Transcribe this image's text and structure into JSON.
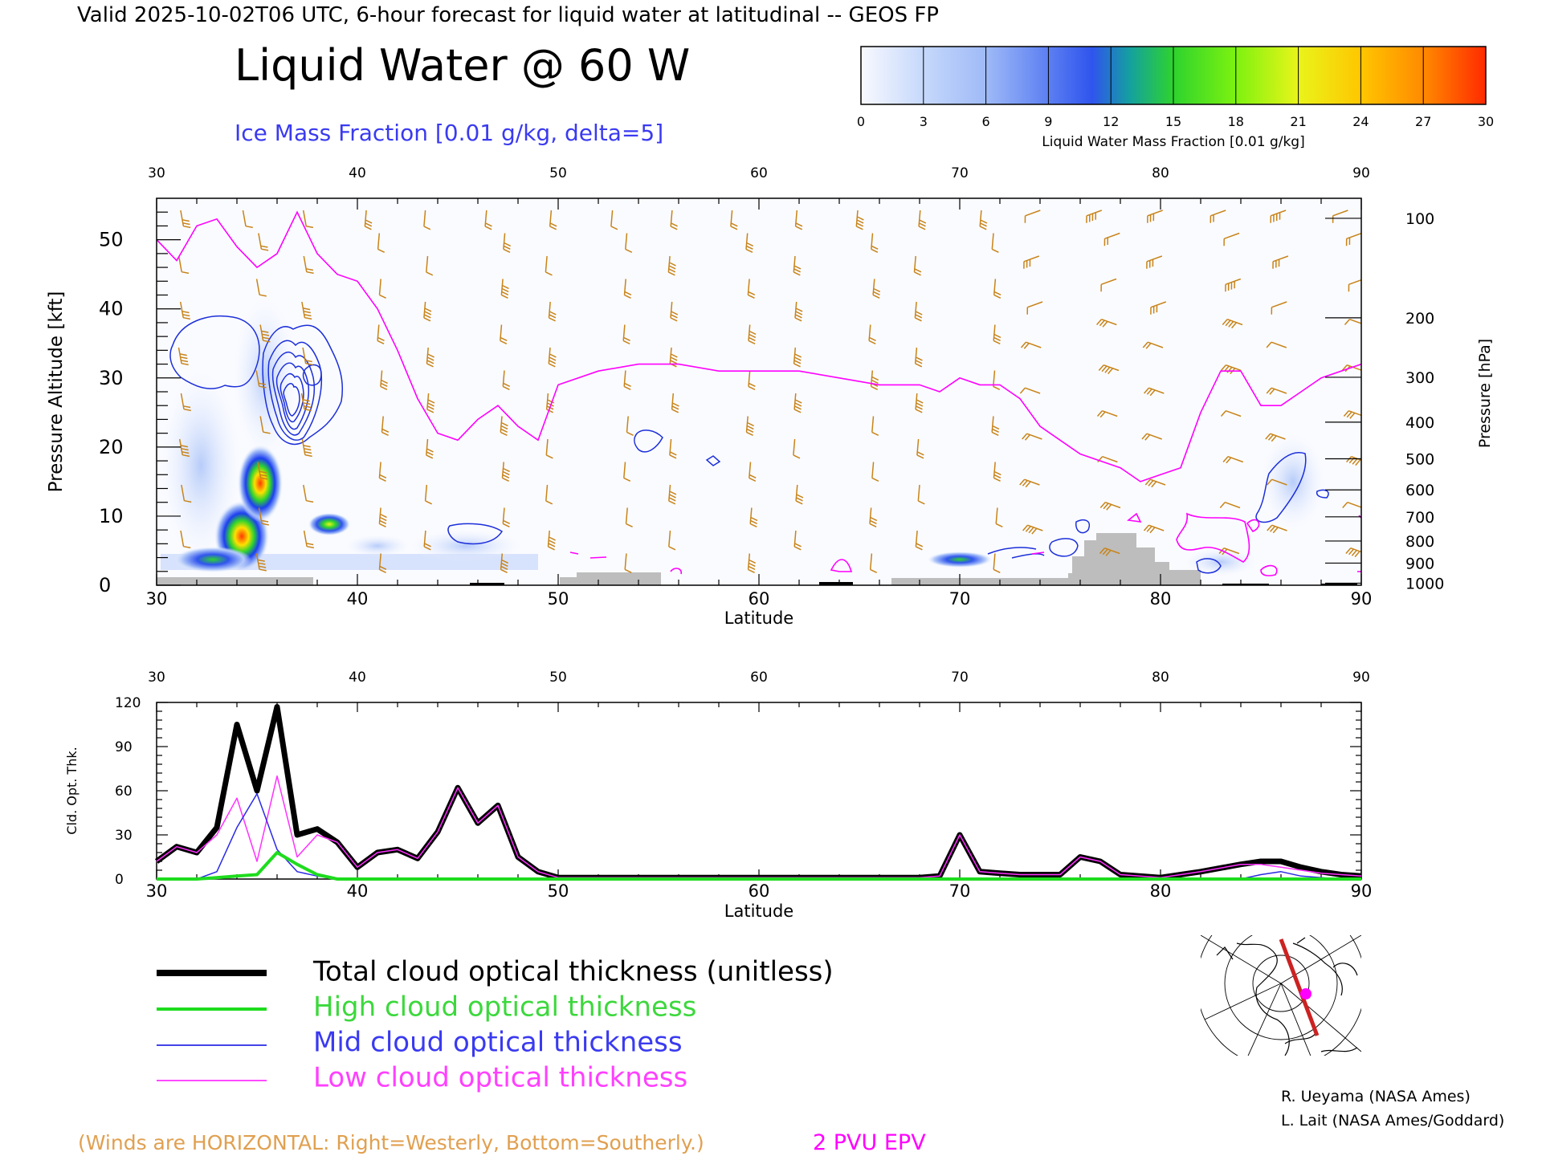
{
  "header": {
    "valid_line": "Valid 2025-10-02T06 UTC, 6-hour forecast for liquid water at latitudinal -- GEOS FP",
    "main_title": "Liquid Water @ 60 W",
    "subtitle": "Ice Mass Fraction [0.01 g/kg, delta=5]"
  },
  "colorbar": {
    "label": "Liquid Water Mass Fraction [0.01 g/kg]",
    "ticks": [
      "0",
      "3",
      "6",
      "9",
      "12",
      "15",
      "18",
      "21",
      "24",
      "27",
      "30"
    ],
    "colors": [
      "#f6f7ff",
      "#c6d8fb",
      "#9fbaf7",
      "#7a9af2",
      "#2f54ee",
      "#14a0a0",
      "#2ed32e",
      "#7df20f",
      "#e9f41a",
      "#ffc600",
      "#ff8a00",
      "#ff2a00"
    ]
  },
  "colors": {
    "wind_barbs": "#c88419",
    "epv": "#ff00ff",
    "ice_contours": "#1c2fd9",
    "terrain": "#bdbdbd",
    "total": "#000000",
    "high": "#1edc1e",
    "mid": "#2a2ae6",
    "low": "#ff30ff"
  },
  "chart_data": [
    {
      "type": "heatmap",
      "title": "Liquid Water @ 60 W",
      "xlabel": "Latitude",
      "ylabel": "Pressure Altitude [kft]",
      "y2label": "Pressure [hPa]",
      "xlim": [
        30,
        90
      ],
      "ylim": [
        0,
        56
      ],
      "x_ticks": [
        "30",
        "40",
        "50",
        "60",
        "70",
        "80",
        "90"
      ],
      "y_ticks": [
        "0",
        "10",
        "20",
        "30",
        "40",
        "50"
      ],
      "pressure_levels": [
        {
          "label": "100",
          "kft": 53.1
        },
        {
          "label": "200",
          "kft": 38.7
        },
        {
          "label": "300",
          "kft": 30.1
        },
        {
          "label": "400",
          "kft": 23.6
        },
        {
          "label": "500",
          "kft": 18.3
        },
        {
          "label": "600",
          "kft": 13.8
        },
        {
          "label": "700",
          "kft": 9.9
        },
        {
          "label": "800",
          "kft": 6.4
        },
        {
          "label": "900",
          "kft": 3.2
        },
        {
          "label": "1000",
          "kft": 0.3
        }
      ],
      "liquid_water_cells": [
        {
          "lat": 34.2,
          "kft": 8.0,
          "value": 24
        },
        {
          "lat": 35.2,
          "kft": 14.5,
          "value": 28
        },
        {
          "lat": 33.0,
          "kft": 4.0,
          "value": 18
        },
        {
          "lat": 38.6,
          "kft": 9.0,
          "value": 22
        },
        {
          "lat": 70.0,
          "kft": 4.0,
          "value": 16
        },
        {
          "lat": 45.5,
          "kft": 6.0,
          "value": 6
        },
        {
          "lat": 86.0,
          "kft": 12.0,
          "value": 5
        }
      ],
      "epv_2pvu_line": [
        [
          30,
          50
        ],
        [
          31,
          47
        ],
        [
          32,
          52
        ],
        [
          33,
          53
        ],
        [
          34,
          49
        ],
        [
          35,
          46
        ],
        [
          36,
          48
        ],
        [
          37,
          54
        ],
        [
          38,
          48
        ],
        [
          39,
          45
        ],
        [
          40,
          44
        ],
        [
          41,
          40
        ],
        [
          42,
          34
        ],
        [
          43,
          27
        ],
        [
          44,
          22
        ],
        [
          45,
          21
        ],
        [
          46,
          24
        ],
        [
          47,
          26
        ],
        [
          48,
          23
        ],
        [
          49,
          21
        ],
        [
          50,
          29
        ],
        [
          52,
          31
        ],
        [
          54,
          32
        ],
        [
          56,
          32
        ],
        [
          58,
          31
        ],
        [
          60,
          31
        ],
        [
          62,
          31
        ],
        [
          64,
          30
        ],
        [
          66,
          29
        ],
        [
          68,
          29
        ],
        [
          69,
          28
        ],
        [
          70,
          30
        ],
        [
          71,
          29
        ],
        [
          72,
          29
        ],
        [
          73,
          27
        ],
        [
          74,
          23
        ],
        [
          75,
          21
        ],
        [
          76,
          19
        ],
        [
          77,
          18
        ],
        [
          78,
          17
        ],
        [
          79,
          15
        ],
        [
          80,
          16
        ],
        [
          81,
          17
        ],
        [
          82,
          25
        ],
        [
          83,
          31
        ],
        [
          84,
          31
        ],
        [
          85,
          26
        ],
        [
          86,
          26
        ],
        [
          87,
          28
        ],
        [
          88,
          30
        ],
        [
          90,
          32
        ]
      ],
      "ice_contour_peaks": [
        {
          "lat": 36.5,
          "kft": 27,
          "max": 60
        },
        {
          "lat": 33.5,
          "kft": 33,
          "max": 10
        },
        {
          "lat": 45.5,
          "kft": 7,
          "max": 5
        },
        {
          "lat": 55,
          "kft": 21,
          "max": 5
        },
        {
          "lat": 85.5,
          "kft": 14,
          "max": 10
        }
      ],
      "terrain_kft": [
        [
          30,
          1
        ],
        [
          38,
          1
        ],
        [
          50,
          1
        ],
        [
          51,
          1.5
        ],
        [
          55,
          1.5
        ],
        [
          66,
          1
        ],
        [
          75,
          2
        ],
        [
          76,
          5
        ],
        [
          77,
          8
        ],
        [
          80,
          7
        ],
        [
          81,
          3
        ],
        [
          83,
          2
        ],
        [
          84,
          0.5
        ],
        [
          90,
          0
        ]
      ],
      "wind_barb_note": "(Winds are HORIZONTAL: Right=Westerly, Bottom=Southerly.)",
      "epv_label": "2 PVU EPV"
    },
    {
      "type": "line",
      "title": "",
      "xlabel": "Latitude",
      "ylabel": "Cld. Opt. Thk.",
      "xlim": [
        30,
        90
      ],
      "ylim": [
        0,
        120
      ],
      "x_ticks": [
        "30",
        "40",
        "50",
        "60",
        "70",
        "80",
        "90"
      ],
      "y_ticks": [
        "0",
        "30",
        "60",
        "90",
        "120"
      ],
      "x": [
        30,
        31,
        32,
        33,
        34,
        35,
        36,
        37,
        38,
        39,
        40,
        41,
        42,
        43,
        44,
        45,
        46,
        47,
        48,
        49,
        50,
        55,
        60,
        65,
        68,
        69,
        70,
        71,
        72,
        73,
        74,
        75,
        76,
        77,
        78,
        80,
        82,
        84,
        85,
        86,
        87,
        88,
        89,
        90
      ],
      "series": [
        {
          "name": "Total cloud optical thickness (unitless)",
          "color": "#000000",
          "width": 7,
          "values": [
            12,
            22,
            18,
            35,
            105,
            60,
            117,
            30,
            34,
            25,
            8,
            18,
            20,
            14,
            32,
            62,
            38,
            50,
            15,
            5,
            1,
            1,
            1,
            1,
            1,
            2,
            30,
            5,
            4,
            3,
            3,
            3,
            15,
            12,
            3,
            1,
            5,
            10,
            12,
            12,
            8,
            5,
            3,
            2
          ]
        },
        {
          "name": "High cloud optical thickness",
          "color": "#1edc1e",
          "width": 4,
          "values": [
            0,
            0,
            0,
            1,
            2,
            3,
            18,
            10,
            3,
            0,
            0,
            0,
            0,
            0,
            0,
            0,
            0,
            0,
            0,
            0,
            0,
            0,
            0,
            0,
            0,
            0,
            0,
            0,
            0,
            0,
            0,
            0,
            0,
            0,
            0,
            0,
            0,
            0,
            0,
            0,
            0,
            0,
            0,
            0
          ]
        },
        {
          "name": "Mid cloud optical thickness",
          "color": "#2a2ae6",
          "width": 1.5,
          "values": [
            0,
            0,
            0,
            5,
            35,
            58,
            20,
            5,
            2,
            0,
            0,
            0,
            0,
            0,
            0,
            0,
            0,
            0,
            0,
            0,
            0,
            0,
            0,
            0,
            0,
            0,
            0,
            0,
            0,
            0,
            0,
            0,
            0,
            0,
            0,
            0,
            0,
            0,
            3,
            5,
            2,
            1,
            0,
            0
          ]
        },
        {
          "name": "Low cloud optical thickness",
          "color": "#ff30ff",
          "width": 1.5,
          "values": [
            12,
            22,
            18,
            30,
            55,
            12,
            70,
            15,
            30,
            25,
            8,
            18,
            20,
            14,
            32,
            62,
            38,
            50,
            15,
            5,
            1,
            1,
            1,
            1,
            1,
            2,
            30,
            5,
            4,
            3,
            3,
            3,
            15,
            12,
            3,
            1,
            5,
            10,
            10,
            8,
            6,
            4,
            3,
            2
          ]
        }
      ]
    }
  ],
  "legend": [
    {
      "label": "Total cloud optical thickness (unitless)",
      "color": "#000000"
    },
    {
      "label": "High cloud optical thickness",
      "color": "#1edc1e"
    },
    {
      "label": "Mid cloud optical thickness",
      "color": "#2a2ae6"
    },
    {
      "label": "Low cloud optical thickness",
      "color": "#ff30ff"
    }
  ],
  "credits": {
    "line1": "R. Ueyama (NASA Ames)",
    "line2": "L. Lait (NASA Ames/Goddard)"
  }
}
